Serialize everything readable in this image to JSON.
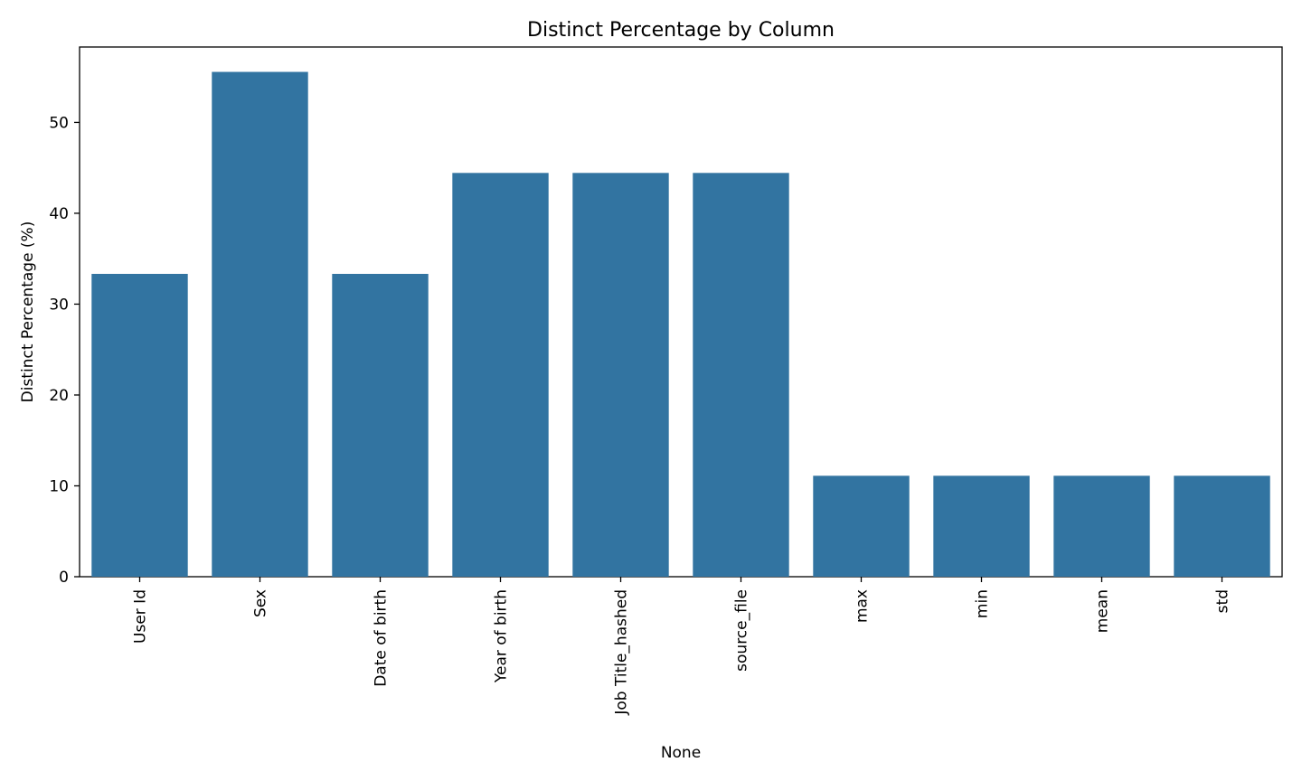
{
  "chart_data": {
    "type": "bar",
    "title": "Distinct Percentage by Column",
    "xlabel": "None",
    "ylabel": "Distinct Percentage (%)",
    "categories": [
      "User Id",
      "Sex",
      "Date of birth",
      "Year of birth",
      "Job Title_hashed",
      "source_file",
      "max",
      "min",
      "mean",
      "std"
    ],
    "values": [
      33.33,
      55.56,
      33.33,
      44.44,
      44.44,
      44.44,
      11.11,
      11.11,
      11.11,
      11.11
    ],
    "ylim": [
      0,
      58.3
    ],
    "yticks": [
      0,
      10,
      20,
      30,
      40,
      50
    ],
    "grid": false,
    "bar_color": "#3274a1",
    "tick_label_rotation": "vertical"
  }
}
